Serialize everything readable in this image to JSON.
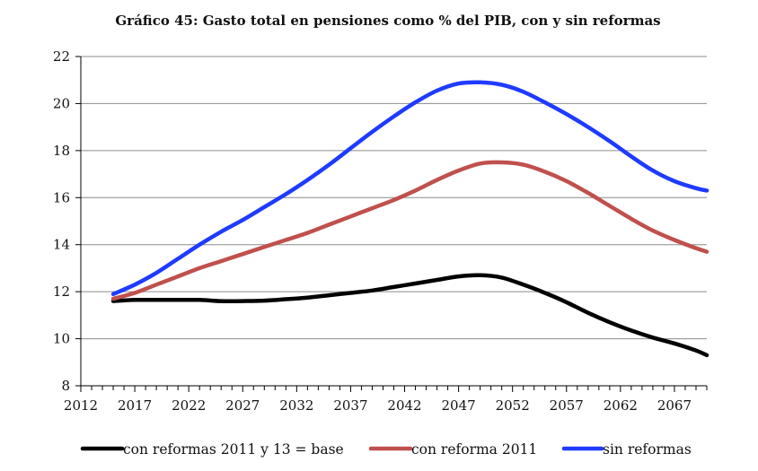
{
  "chart_data": {
    "type": "line",
    "title": "Gráfico 45: Gasto total en pensiones como % del PIB, con y sin reformas",
    "xlabel": "",
    "ylabel": "",
    "xlim": [
      2012,
      2070
    ],
    "ylim": [
      8,
      22
    ],
    "x_ticks": [
      2012,
      2017,
      2022,
      2027,
      2032,
      2037,
      2042,
      2047,
      2052,
      2057,
      2062,
      2067
    ],
    "y_ticks": [
      8,
      10,
      12,
      14,
      16,
      18,
      20,
      22
    ],
    "grid": "horizontal",
    "legend_position": "bottom",
    "series": [
      {
        "name": "con reformas 2011 y 13 = base",
        "color": "#000000",
        "x": [
          2015,
          2017,
          2019,
          2021,
          2023,
          2025,
          2027,
          2029,
          2031,
          2033,
          2035,
          2037,
          2039,
          2041,
          2043,
          2045,
          2047,
          2049,
          2051,
          2053,
          2055,
          2057,
          2059,
          2061,
          2063,
          2065,
          2067,
          2069,
          2070
        ],
        "values": [
          11.6,
          11.65,
          11.65,
          11.65,
          11.65,
          11.6,
          11.6,
          11.62,
          11.68,
          11.75,
          11.85,
          11.95,
          12.05,
          12.2,
          12.35,
          12.5,
          12.65,
          12.7,
          12.6,
          12.3,
          11.95,
          11.55,
          11.1,
          10.7,
          10.35,
          10.05,
          9.8,
          9.5,
          9.3
        ]
      },
      {
        "name": "con reforma 2011",
        "color": "#c0504d",
        "x": [
          2015,
          2017,
          2019,
          2021,
          2023,
          2025,
          2027,
          2029,
          2031,
          2033,
          2035,
          2037,
          2039,
          2041,
          2043,
          2045,
          2047,
          2049,
          2051,
          2053,
          2055,
          2057,
          2059,
          2061,
          2063,
          2065,
          2067,
          2069,
          2070
        ],
        "values": [
          11.7,
          11.95,
          12.3,
          12.65,
          13.0,
          13.3,
          13.6,
          13.9,
          14.2,
          14.5,
          14.85,
          15.2,
          15.55,
          15.9,
          16.3,
          16.75,
          17.15,
          17.45,
          17.5,
          17.4,
          17.1,
          16.7,
          16.2,
          15.65,
          15.1,
          14.6,
          14.2,
          13.85,
          13.7
        ]
      },
      {
        "name": "sin reformas",
        "color": "#1f3bff",
        "x": [
          2015,
          2017,
          2019,
          2021,
          2023,
          2025,
          2027,
          2029,
          2031,
          2033,
          2035,
          2037,
          2039,
          2041,
          2043,
          2045,
          2047,
          2049,
          2051,
          2053,
          2055,
          2057,
          2059,
          2061,
          2063,
          2065,
          2067,
          2069,
          2070
        ],
        "values": [
          11.9,
          12.3,
          12.8,
          13.4,
          14.0,
          14.55,
          15.05,
          15.6,
          16.15,
          16.75,
          17.4,
          18.1,
          18.8,
          19.45,
          20.05,
          20.55,
          20.85,
          20.9,
          20.8,
          20.5,
          20.05,
          19.55,
          19.0,
          18.4,
          17.75,
          17.15,
          16.7,
          16.4,
          16.3
        ]
      }
    ]
  }
}
